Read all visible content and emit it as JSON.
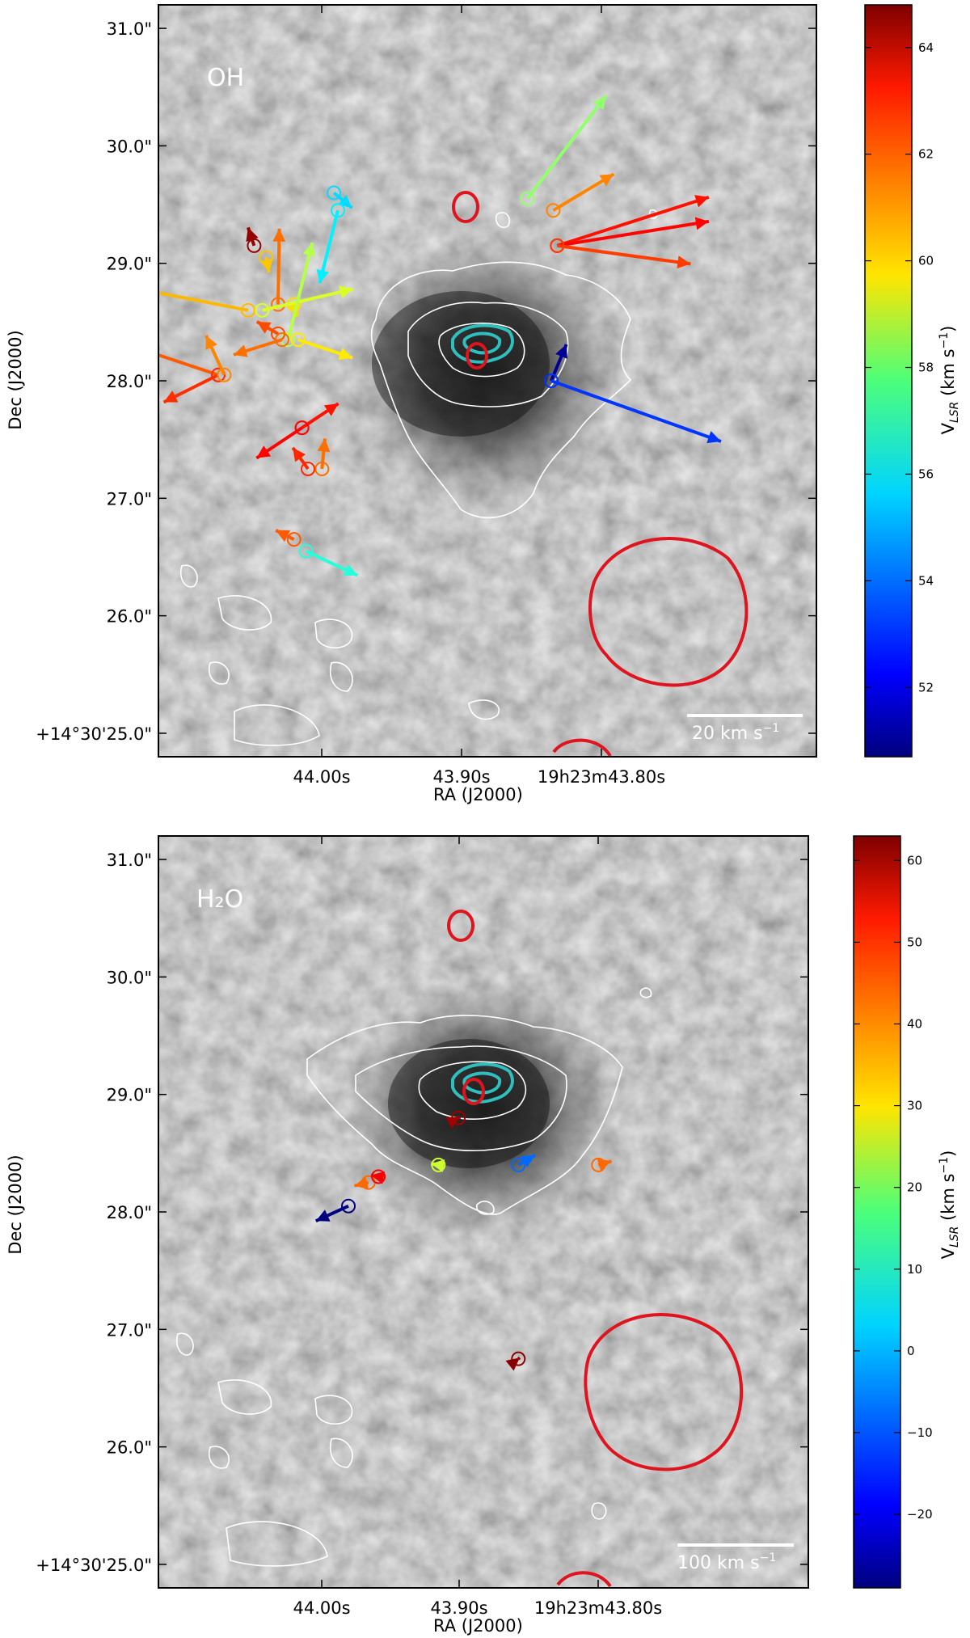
{
  "chart_data": [
    {
      "type": "scatter",
      "panel_label": "OH",
      "xlabel": "RA (J2000)",
      "ylabel": "Dec (J2000)",
      "x_ticks": [
        "44.00s",
        "43.90s",
        "19h23m43.80s"
      ],
      "y_ticks": [
        "+14°30'25.0\"",
        "26.0\"",
        "27.0\"",
        "28.0\"",
        "29.0\"",
        "30.0\"",
        "31.0\""
      ],
      "ylim": [
        24.8,
        31.2
      ],
      "colorbar": {
        "label": "V_LSR (km s^-1)",
        "min": 50.7,
        "max": 64.8,
        "ticks": [
          "52",
          "54",
          "56",
          "58",
          "60",
          "62",
          "64"
        ],
        "tick_values": [
          52,
          54,
          56,
          58,
          60,
          62,
          64
        ]
      },
      "scale_bar": "20 km s",
      "scale_bar_exp": "−1",
      "masers": [
        {
          "x": 44.012,
          "y": 29.15,
          "v": 64.5,
          "pm": [
            -0.1,
            0.3
          ]
        },
        {
          "x": 44.006,
          "y": 29.05,
          "v": 60.3,
          "pm": [
            0.05,
            -0.25
          ]
        },
        {
          "x": 44.0,
          "y": 28.65,
          "v": 61.5,
          "pm": [
            0.02,
            1.25
          ]
        },
        {
          "x": 43.992,
          "y": 28.65,
          "v": 60.0,
          "pm": [
            0.05,
            -0.2
          ]
        },
        {
          "x": 44.015,
          "y": 28.6,
          "v": 60.5,
          "pm": [
            -1.8,
            0.35
          ]
        },
        {
          "x": 44.008,
          "y": 28.6,
          "v": 59.0,
          "pm": [
            1.5,
            0.35
          ]
        },
        {
          "x": 43.995,
          "y": 28.35,
          "v": 58.5,
          "pm": [
            0.4,
            1.6
          ]
        },
        {
          "x": 43.99,
          "y": 28.35,
          "v": 59.8,
          "pm": [
            0.9,
            -0.3
          ]
        },
        {
          "x": 44.0,
          "y": 28.4,
          "v": 62.0,
          "pm": [
            -0.35,
            0.2
          ]
        },
        {
          "x": 43.998,
          "y": 28.35,
          "v": 61.5,
          "pm": [
            -0.8,
            -0.25
          ]
        },
        {
          "x": 44.03,
          "y": 28.05,
          "v": 61.8,
          "pm": [
            -1.2,
            0.4
          ]
        },
        {
          "x": 44.03,
          "y": 28.05,
          "v": 62.4,
          "pm": [
            -0.9,
            -0.45
          ]
        },
        {
          "x": 44.027,
          "y": 28.05,
          "v": 61.2,
          "pm": [
            -0.3,
            0.65
          ]
        },
        {
          "x": 43.972,
          "y": 29.6,
          "v": 55.5,
          "pm": [
            0.3,
            -0.25
          ]
        },
        {
          "x": 43.97,
          "y": 29.45,
          "v": 55.8,
          "pm": [
            -0.3,
            -1.2
          ]
        },
        {
          "x": 43.875,
          "y": 29.55,
          "v": 58.0,
          "pm": [
            1.3,
            1.7
          ]
        },
        {
          "x": 43.862,
          "y": 29.45,
          "v": 61.2,
          "pm": [
            1.0,
            0.6
          ]
        },
        {
          "x": 43.86,
          "y": 29.15,
          "v": 62.8,
          "pm": [
            2.5,
            0.8
          ]
        },
        {
          "x": 43.86,
          "y": 29.15,
          "v": 63.0,
          "pm": [
            2.5,
            0.4
          ]
        },
        {
          "x": 43.86,
          "y": 29.15,
          "v": 62.2,
          "pm": [
            2.2,
            -0.3
          ]
        },
        {
          "x": 43.863,
          "y": 28.0,
          "v": 51.0,
          "pm": [
            0.25,
            0.6
          ]
        },
        {
          "x": 43.863,
          "y": 28.0,
          "v": 53.2,
          "pm": [
            2.8,
            -1.0
          ]
        },
        {
          "x": 43.988,
          "y": 27.6,
          "v": 62.8,
          "pm": [
            0.6,
            0.4
          ]
        },
        {
          "x": 43.988,
          "y": 27.6,
          "v": 63.0,
          "pm": [
            -0.75,
            -0.5
          ]
        },
        {
          "x": 43.978,
          "y": 27.25,
          "v": 61.5,
          "pm": [
            0.05,
            0.5
          ]
        },
        {
          "x": 43.985,
          "y": 27.25,
          "v": 62.5,
          "pm": [
            -0.25,
            0.35
          ]
        },
        {
          "x": 43.992,
          "y": 26.65,
          "v": 61.8,
          "pm": [
            -0.3,
            0.15
          ]
        },
        {
          "x": 43.986,
          "y": 26.55,
          "v": 56.5,
          "pm": [
            0.85,
            -0.4
          ]
        }
      ]
    },
    {
      "type": "scatter",
      "panel_label": "H₂O",
      "xlabel": "RA (J2000)",
      "ylabel": "Dec (J2000)",
      "x_ticks": [
        "44.00s",
        "43.90s",
        "19h23m43.80s"
      ],
      "y_ticks": [
        "+14°30'25.0\"",
        "26.0\"",
        "27.0\"",
        "28.0\"",
        "29.0\"",
        "30.0\"",
        "31.0\""
      ],
      "ylim": [
        24.8,
        31.2
      ],
      "colorbar": {
        "label": "V_LSR (km s^-1)",
        "min": -29,
        "max": 63,
        "ticks": [
          "−20",
          "−10",
          "0",
          "10",
          "20",
          "30",
          "40",
          "50",
          "60"
        ],
        "tick_values": [
          -20,
          -10,
          0,
          10,
          20,
          30,
          40,
          50,
          60
        ]
      },
      "scale_bar": "100 km s",
      "scale_bar_exp": "−1",
      "masers": [
        {
          "x": 43.965,
          "y": 28.05,
          "v": -29,
          "pm": [
            -3.5,
            -1.6
          ]
        },
        {
          "x": 43.955,
          "y": 28.25,
          "v": 42,
          "pm": [
            -1.5,
            -0.35
          ]
        },
        {
          "x": 43.95,
          "y": 28.3,
          "v": 52,
          "pm": [
            -0.8,
            0.15
          ]
        },
        {
          "x": 43.92,
          "y": 28.4,
          "v": 24,
          "pm": [
            -0.8,
            0.12
          ]
        },
        {
          "x": 43.88,
          "y": 28.4,
          "v": -8,
          "pm": [
            1.8,
            1.05
          ]
        },
        {
          "x": 43.84,
          "y": 28.4,
          "v": 42,
          "pm": [
            1.4,
            0.4
          ]
        },
        {
          "x": 43.91,
          "y": 28.8,
          "v": 60,
          "pm": [
            0.2,
            0.1
          ]
        },
        {
          "x": 43.88,
          "y": 26.75,
          "v": 62,
          "pm": [
            0.15,
            0.12
          ]
        }
      ]
    }
  ]
}
